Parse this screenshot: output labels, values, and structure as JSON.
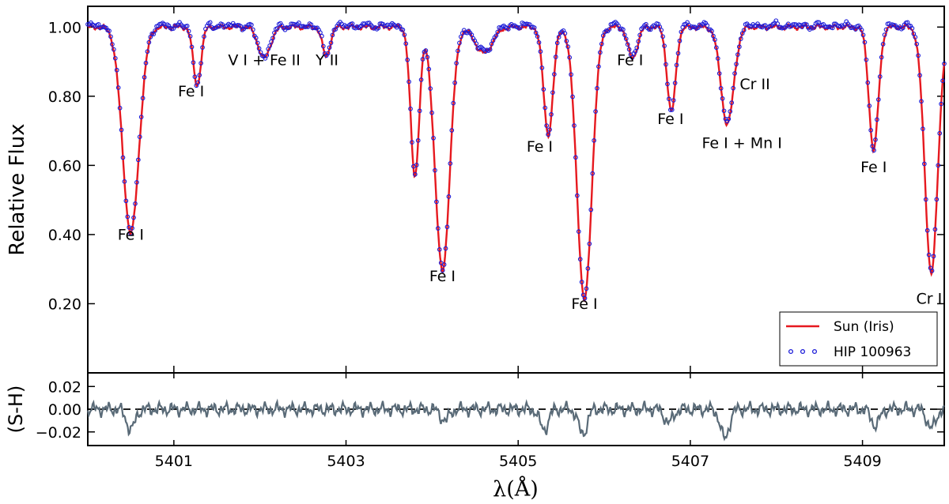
{
  "chart_data": [
    {
      "type": "line",
      "panel": "main",
      "title": "",
      "xlabel": "λ(Å)",
      "ylabel": "Relative Flux",
      "xlim": [
        5400.0,
        5409.95
      ],
      "ylim": [
        0.0,
        1.06
      ],
      "x_ticks": [
        5401,
        5403,
        5405,
        5407,
        5409
      ],
      "x_tick_labels": [
        "5401",
        "5403",
        "5405",
        "5407",
        "5409"
      ],
      "y_ticks": [
        0.2,
        0.4,
        0.6,
        0.8,
        1.0
      ],
      "y_tick_labels": [
        "0.20",
        "0.40",
        "0.60",
        "0.80",
        "1.00"
      ],
      "grid": false,
      "legend_position": "bottom-right",
      "continuum": 1.0,
      "absorption_lines": [
        {
          "wavelength": 5400.5,
          "depth": 0.595,
          "width": 0.095
        },
        {
          "wavelength": 5401.27,
          "depth": 0.168,
          "width": 0.045
        },
        {
          "wavelength": 5402.05,
          "depth": 0.09,
          "width": 0.07
        },
        {
          "wavelength": 5402.77,
          "depth": 0.085,
          "width": 0.045
        },
        {
          "wavelength": 5403.8,
          "depth": 0.43,
          "width": 0.05
        },
        {
          "wavelength": 5404.12,
          "depth": 0.705,
          "width": 0.085
        },
        {
          "wavelength": 5404.6,
          "depth": 0.075,
          "width": 0.1
        },
        {
          "wavelength": 5405.35,
          "depth": 0.31,
          "width": 0.055
        },
        {
          "wavelength": 5405.77,
          "depth": 0.79,
          "width": 0.085
        },
        {
          "wavelength": 5406.33,
          "depth": 0.09,
          "width": 0.055
        },
        {
          "wavelength": 5406.78,
          "depth": 0.245,
          "width": 0.05
        },
        {
          "wavelength": 5407.43,
          "depth": 0.28,
          "width": 0.075
        },
        {
          "wavelength": 5409.13,
          "depth": 0.355,
          "width": 0.055
        },
        {
          "wavelength": 5409.8,
          "depth": 0.71,
          "width": 0.075
        }
      ],
      "series": [
        {
          "name": "Sun (Iris)",
          "style": "line",
          "color": "#e6191f"
        },
        {
          "name": "HIP 100963",
          "style": "open-circles",
          "color": "#1c1cd8"
        }
      ],
      "annotations": [
        {
          "text": "Fe I",
          "x": 5400.5,
          "y": 0.385
        },
        {
          "text": "Fe I",
          "x": 5401.2,
          "y": 0.8
        },
        {
          "text": "V I + Fe II",
          "x": 5402.05,
          "y": 0.89
        },
        {
          "text": "Y II",
          "x": 5402.78,
          "y": 0.89
        },
        {
          "text": "Fe I",
          "x": 5404.12,
          "y": 0.265
        },
        {
          "text": "Fe I",
          "x": 5405.25,
          "y": 0.64
        },
        {
          "text": "Fe I",
          "x": 5405.77,
          "y": 0.185
        },
        {
          "text": "Fe I",
          "x": 5406.3,
          "y": 0.89
        },
        {
          "text": "Fe I",
          "x": 5406.77,
          "y": 0.72
        },
        {
          "text": "Fe I + Mn I",
          "x": 5407.6,
          "y": 0.65
        },
        {
          "text": "Cr II",
          "x": 5407.75,
          "y": 0.82
        },
        {
          "text": "Fe I",
          "x": 5409.13,
          "y": 0.58
        },
        {
          "text": "Cr II",
          "x": 5409.8,
          "y": 0.2
        }
      ]
    },
    {
      "type": "line",
      "panel": "residual",
      "ylabel": "(S-H)",
      "xlabel": "λ(Å)",
      "xlim": [
        5400.0,
        5409.95
      ],
      "ylim": [
        -0.032,
        0.032
      ],
      "y_ticks": [
        -0.02,
        0.0,
        0.02
      ],
      "y_tick_labels": [
        "−0.02",
        "0.00",
        "0.02"
      ],
      "zero_line": 0.0,
      "series": [
        {
          "name": "",
          "style": "line",
          "color": "#5a6b78"
        }
      ],
      "dips": [
        {
          "x": 5400.5,
          "y": -0.018
        },
        {
          "x": 5404.15,
          "y": -0.01
        },
        {
          "x": 5405.3,
          "y": -0.018
        },
        {
          "x": 5405.75,
          "y": -0.022
        },
        {
          "x": 5406.75,
          "y": -0.012
        },
        {
          "x": 5407.4,
          "y": -0.026
        },
        {
          "x": 5409.15,
          "y": -0.014
        },
        {
          "x": 5409.8,
          "y": -0.017
        }
      ]
    }
  ]
}
